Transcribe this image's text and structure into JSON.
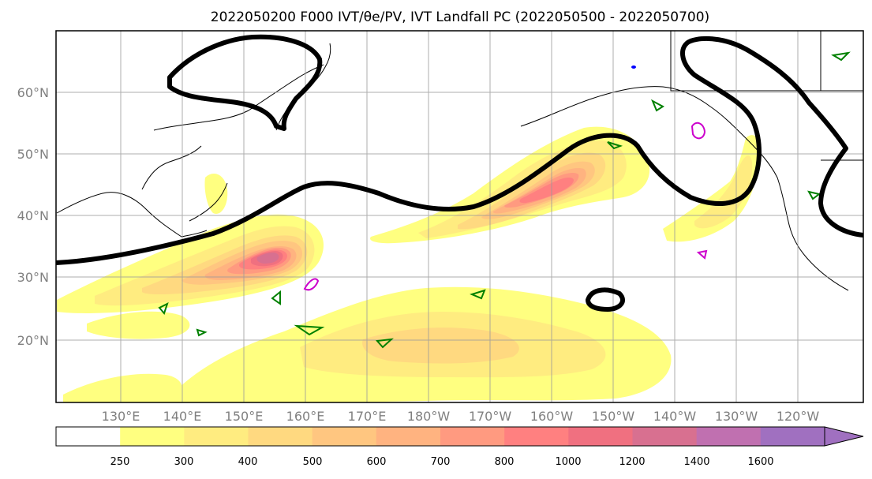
{
  "figure": {
    "title": "2022050200 F000 IVT/θe/PV, IVT Landfall PC (2022050500 - 2022050700)"
  },
  "map": {
    "lon_labels": [
      "130°E",
      "140°E",
      "150°E",
      "160°E",
      "170°E",
      "180°W",
      "170°W",
      "160°W",
      "150°W",
      "140°W",
      "130°W",
      "120°W"
    ],
    "lat_labels": [
      "60°N",
      "50°N",
      "40°N",
      "30°N",
      "20°N"
    ],
    "gridlines": true,
    "colors": {
      "contour_thick": "#000000",
      "theta_e_contours": "#008000",
      "pv_contours": "#cc00cc",
      "extra_contour": "#0000ff",
      "coastline": "#000000",
      "gridline": "#999999"
    }
  },
  "colorbar": {
    "tick_labels": [
      "250",
      "300",
      "400",
      "500",
      "600",
      "700",
      "800",
      "1000",
      "1200",
      "1400",
      "1600"
    ],
    "colors": [
      "#ffffff",
      "#ffff80",
      "#ffec80",
      "#ffd980",
      "#ffc680",
      "#ffb380",
      "#ff9a80",
      "#ff8080",
      "#f07080",
      "#d87090",
      "#c070b0",
      "#a070c0"
    ],
    "extend": "max"
  }
}
